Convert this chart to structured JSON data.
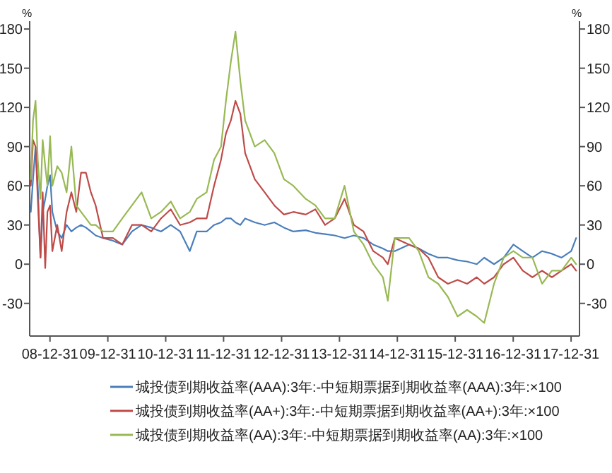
{
  "chart_data": {
    "type": "line",
    "ylabel": "%",
    "y2label": "%",
    "legend": "bottom",
    "marker": "none",
    "line_style": "solid",
    "grid": false,
    "x": [
      "2008-09-01",
      "2008-09-15",
      "2008-10-01",
      "2008-10-15",
      "2008-11-01",
      "2008-11-15",
      "2008-12-01",
      "2008-12-15",
      "2009-01-01",
      "2009-01-15",
      "2009-02-15",
      "2009-03-15",
      "2009-04-15",
      "2009-05-15",
      "2009-06-15",
      "2009-07-15",
      "2009-08-15",
      "2009-09-15",
      "2009-10-15",
      "2009-12-01",
      "2010-02-01",
      "2010-04-01",
      "2010-06-01",
      "2010-08-01",
      "2010-10-01",
      "2010-12-01",
      "2011-02-01",
      "2011-04-01",
      "2011-06-01",
      "2011-07-15",
      "2011-09-15",
      "2011-11-01",
      "2011-12-15",
      "2012-01-15",
      "2012-02-15",
      "2012-03-15",
      "2012-04-15",
      "2012-05-15",
      "2012-07-15",
      "2012-09-15",
      "2012-11-15",
      "2013-01-15",
      "2013-03-15",
      "2013-06-01",
      "2013-08-01",
      "2013-10-01",
      "2013-12-01",
      "2014-02-01",
      "2014-04-01",
      "2014-06-01",
      "2014-08-01",
      "2014-10-01",
      "2014-11-01",
      "2014-12-15",
      "2015-03-15",
      "2015-05-15",
      "2015-07-15",
      "2015-09-15",
      "2015-11-15",
      "2016-01-15",
      "2016-03-15",
      "2016-05-15",
      "2016-07-01",
      "2016-09-01",
      "2016-11-01",
      "2017-01-01",
      "2017-03-01",
      "2017-05-01",
      "2017-07-01",
      "2017-09-01",
      "2017-11-01",
      "2018-01-01",
      "2018-02-01"
    ],
    "xlim": [
      "2008-08-25",
      "2018-02-22"
    ],
    "xticks": [
      {
        "value": "2008-12-31",
        "label": "08-12-31"
      },
      {
        "value": "2009-12-31",
        "label": "09-12-31"
      },
      {
        "value": "2010-12-31",
        "label": "10-12-31"
      },
      {
        "value": "2011-12-31",
        "label": "11-12-31"
      },
      {
        "value": "2012-12-31",
        "label": "12-12-31"
      },
      {
        "value": "2013-12-31",
        "label": "13-12-31"
      },
      {
        "value": "2014-12-31",
        "label": "14-12-31"
      },
      {
        "value": "2015-12-31",
        "label": "15-12-31"
      },
      {
        "value": "2016-12-31",
        "label": "16-12-31"
      },
      {
        "value": "2017-12-31",
        "label": "17-12-31"
      }
    ],
    "ylim": [
      -55,
      186
    ],
    "yticks": [
      -30,
      0,
      30,
      60,
      90,
      120,
      150,
      180
    ],
    "y2lim": [
      -55,
      186
    ],
    "y2ticks": [
      -30,
      0,
      30,
      60,
      90,
      120,
      150,
      180
    ],
    "series": [
      {
        "name": "城投债到期收益率(AAA):3年:-中短期票据到期收益率(AAA):3年:×100",
        "color": "#4a7ebb",
        "values": [
          40,
          65,
          90,
          60,
          5,
          40,
          50,
          60,
          68,
          40,
          25,
          20,
          30,
          25,
          28,
          30,
          28,
          25,
          22,
          20,
          18,
          15,
          25,
          30,
          28,
          25,
          30,
          25,
          10,
          25,
          25,
          30,
          32,
          35,
          35,
          32,
          30,
          35,
          32,
          30,
          32,
          28,
          25,
          26,
          24,
          23,
          22,
          20,
          22,
          20,
          15,
          12,
          10,
          10,
          15,
          12,
          8,
          5,
          5,
          3,
          2,
          0,
          5,
          0,
          5,
          15,
          10,
          5,
          10,
          8,
          5,
          10,
          20
        ]
      },
      {
        "name": "城投债到期收益率(AA+):3年:-中短期票据到期收益率(AA+):3年:×100",
        "color": "#be4b48",
        "values": [
          60,
          95,
          90,
          50,
          5,
          55,
          -3,
          40,
          45,
          10,
          30,
          10,
          40,
          55,
          40,
          70,
          70,
          55,
          45,
          20,
          20,
          15,
          30,
          30,
          25,
          35,
          42,
          30,
          32,
          35,
          35,
          60,
          80,
          100,
          110,
          125,
          115,
          85,
          65,
          55,
          45,
          38,
          40,
          38,
          42,
          30,
          35,
          50,
          30,
          25,
          10,
          5,
          0,
          20,
          15,
          12,
          5,
          -10,
          -15,
          -12,
          -15,
          -10,
          -15,
          -10,
          0,
          5,
          -5,
          -10,
          -5,
          -10,
          -5,
          0,
          -5
        ]
      },
      {
        "name": "城投债到期收益率(AA):3年:-中短期票据到期收益率(AA):3年:×100",
        "color": "#98b954",
        "values": [
          65,
          110,
          125,
          80,
          50,
          95,
          75,
          60,
          98,
          60,
          75,
          70,
          55,
          90,
          45,
          40,
          35,
          30,
          30,
          25,
          25,
          35,
          45,
          55,
          35,
          40,
          48,
          35,
          40,
          50,
          55,
          80,
          90,
          125,
          155,
          178,
          140,
          110,
          90,
          95,
          85,
          65,
          60,
          50,
          45,
          35,
          35,
          60,
          25,
          15,
          0,
          -10,
          -28,
          20,
          20,
          10,
          -10,
          -15,
          -25,
          -40,
          -35,
          -40,
          -45,
          -15,
          5,
          10,
          5,
          5,
          -15,
          -5,
          -5,
          5,
          0
        ]
      }
    ]
  }
}
